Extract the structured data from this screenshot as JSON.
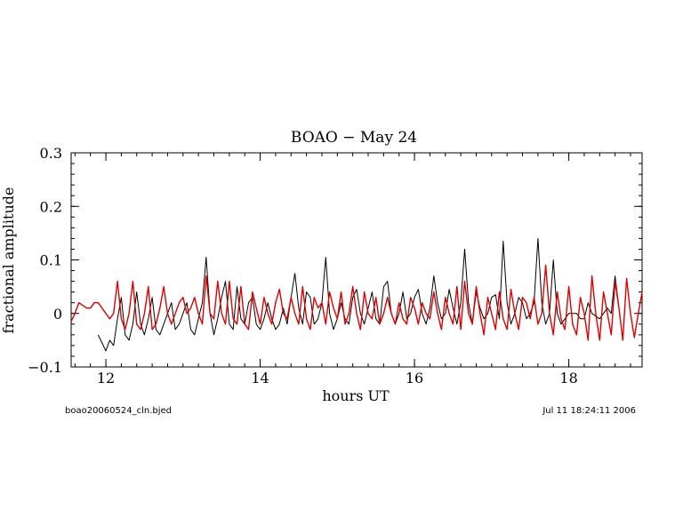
{
  "chart_data": {
    "type": "line",
    "title": "BOAO − May 24",
    "xlabel": "hours UT",
    "ylabel": "fractional amplitude",
    "xlim": [
      11.55,
      18.95
    ],
    "ylim": [
      -0.1,
      0.3
    ],
    "xticks": [
      12,
      14,
      16,
      18
    ],
    "xtick_labels": [
      "12",
      "14",
      "16",
      "18"
    ],
    "yticks": [
      -0.1,
      0,
      0.1,
      0.2,
      0.3
    ],
    "ytick_labels": [
      "−0.1",
      "0",
      "0.1",
      "0.2",
      "0.3"
    ],
    "grid": false,
    "series": [
      {
        "color": "#000000",
        "x": [
          11.9,
          12.0,
          12.05,
          12.1,
          12.15,
          12.2,
          12.25,
          12.3,
          12.35,
          12.4,
          12.45,
          12.5,
          12.55,
          12.6,
          12.65,
          12.7,
          12.75,
          12.8,
          12.85,
          12.9,
          12.95,
          13.0,
          13.05,
          13.1,
          13.15,
          13.2,
          13.25,
          13.3,
          13.35,
          13.4,
          13.45,
          13.5,
          13.55,
          13.6,
          13.65,
          13.7,
          13.75,
          13.8,
          13.85,
          13.9,
          13.95,
          14.0,
          14.05,
          14.1,
          14.15,
          14.2,
          14.25,
          14.3,
          14.35,
          14.4,
          14.45,
          14.5,
          14.55,
          14.6,
          14.65,
          14.7,
          14.75,
          14.8,
          14.85,
          14.9,
          14.95,
          15.0,
          15.05,
          15.1,
          15.15,
          15.2,
          15.25,
          15.3,
          15.35,
          15.4,
          15.45,
          15.5,
          15.55,
          15.6,
          15.65,
          15.7,
          15.75,
          15.8,
          15.85,
          15.9,
          15.95,
          16.0,
          16.05,
          16.1,
          16.15,
          16.2,
          16.25,
          16.3,
          16.35,
          16.4,
          16.45,
          16.5,
          16.55,
          16.6,
          16.65,
          16.7,
          16.75,
          16.8,
          16.85,
          16.9,
          16.95,
          17.0,
          17.05,
          17.1,
          17.15,
          17.2,
          17.25,
          17.3,
          17.35,
          17.4,
          17.45,
          17.5,
          17.55,
          17.6,
          17.65,
          17.7,
          17.75,
          17.8,
          17.85,
          17.9,
          18.0,
          18.1,
          18.15,
          18.2,
          18.25,
          18.3,
          18.4,
          18.45,
          18.5,
          18.55,
          18.6,
          18.65
        ],
        "values": [
          -0.04,
          -0.07,
          -0.05,
          -0.06,
          -0.01,
          0.03,
          -0.04,
          -0.05,
          -0.02,
          0.04,
          -0.02,
          -0.04,
          -0.01,
          0.03,
          -0.03,
          -0.04,
          -0.02,
          0.0,
          0.02,
          -0.03,
          -0.02,
          0.0,
          0.02,
          -0.03,
          -0.04,
          -0.01,
          0.02,
          0.105,
          0.0,
          -0.04,
          -0.01,
          0.03,
          0.06,
          -0.02,
          -0.03,
          0.05,
          -0.01,
          -0.02,
          0.02,
          0.03,
          -0.02,
          -0.03,
          -0.01,
          0.02,
          -0.01,
          -0.03,
          -0.02,
          0.01,
          -0.02,
          0.03,
          0.075,
          0.01,
          -0.02,
          0.04,
          0.03,
          -0.02,
          -0.01,
          0.02,
          0.105,
          0.0,
          -0.03,
          -0.01,
          0.02,
          -0.01,
          -0.02,
          0.03,
          0.045,
          0.0,
          -0.02,
          0.01,
          0.04,
          -0.01,
          -0.02,
          0.05,
          0.06,
          0.0,
          -0.02,
          0.0,
          0.04,
          -0.01,
          0.0,
          0.03,
          0.045,
          0.0,
          -0.02,
          0.01,
          0.07,
          0.02,
          -0.01,
          0.0,
          0.045,
          0.01,
          -0.02,
          0.02,
          0.12,
          0.02,
          -0.02,
          0.04,
          0.01,
          -0.01,
          0.0,
          0.03,
          0.035,
          -0.01,
          0.135,
          0.02,
          -0.02,
          0.0,
          0.03,
          0.02,
          -0.01,
          0.0,
          0.02,
          0.14,
          0.02,
          -0.02,
          0.0,
          0.1,
          0.0,
          -0.02,
          0.0,
          0.0,
          -0.01,
          -0.01,
          0.02,
          0.0,
          -0.01,
          0.0,
          0.01,
          0.0,
          0.07,
          0.01
        ]
      },
      {
        "color": "#e00000",
        "x": [
          11.55,
          11.6,
          11.65,
          11.7,
          11.75,
          11.8,
          11.85,
          11.9,
          11.95,
          12.0,
          12.05,
          12.1,
          12.15,
          12.2,
          12.25,
          12.3,
          12.35,
          12.4,
          12.45,
          12.5,
          12.55,
          12.6,
          12.65,
          12.7,
          12.75,
          12.8,
          12.85,
          12.9,
          12.95,
          13.0,
          13.05,
          13.1,
          13.15,
          13.2,
          13.25,
          13.3,
          13.35,
          13.4,
          13.45,
          13.5,
          13.55,
          13.6,
          13.65,
          13.7,
          13.75,
          13.8,
          13.85,
          13.9,
          13.95,
          14.0,
          14.05,
          14.1,
          14.15,
          14.2,
          14.25,
          14.3,
          14.35,
          14.4,
          14.45,
          14.5,
          14.55,
          14.6,
          14.65,
          14.7,
          14.75,
          14.8,
          14.85,
          14.9,
          14.95,
          15.0,
          15.05,
          15.1,
          15.15,
          15.2,
          15.25,
          15.3,
          15.35,
          15.4,
          15.45,
          15.5,
          15.55,
          15.6,
          15.65,
          15.7,
          15.75,
          15.8,
          15.85,
          15.9,
          15.95,
          16.0,
          16.05,
          16.1,
          16.15,
          16.2,
          16.25,
          16.3,
          16.35,
          16.4,
          16.45,
          16.5,
          16.55,
          16.6,
          16.65,
          16.7,
          16.75,
          16.8,
          16.85,
          16.9,
          16.95,
          17.0,
          17.05,
          17.1,
          17.15,
          17.2,
          17.25,
          17.3,
          17.35,
          17.4,
          17.45,
          17.5,
          17.55,
          17.6,
          17.65,
          17.7,
          17.75,
          17.8,
          17.85,
          17.9,
          17.95,
          18.0,
          18.05,
          18.1,
          18.15,
          18.2,
          18.25,
          18.3,
          18.35,
          18.4,
          18.45,
          18.5,
          18.55,
          18.6,
          18.65,
          18.7,
          18.75,
          18.8,
          18.85,
          18.9,
          18.95
        ],
        "values": [
          -0.015,
          0.0,
          0.02,
          0.015,
          0.01,
          0.01,
          0.02,
          0.02,
          0.01,
          0.0,
          -0.01,
          0.0,
          0.06,
          -0.01,
          -0.03,
          0.0,
          0.06,
          -0.02,
          -0.03,
          0.0,
          0.05,
          -0.03,
          -0.02,
          0.01,
          0.05,
          0.0,
          -0.02,
          0.0,
          0.02,
          0.03,
          0.0,
          0.01,
          0.03,
          0.0,
          -0.02,
          0.07,
          0.0,
          -0.01,
          0.06,
          0.0,
          -0.02,
          0.06,
          -0.01,
          -0.02,
          0.05,
          -0.02,
          -0.03,
          0.04,
          0.01,
          -0.02,
          0.03,
          0.0,
          -0.02,
          0.02,
          0.045,
          0.0,
          -0.01,
          0.03,
          0.0,
          -0.02,
          0.05,
          -0.01,
          -0.03,
          0.03,
          0.01,
          0.02,
          -0.02,
          0.04,
          0.01,
          -0.01,
          0.04,
          -0.02,
          0.0,
          0.05,
          0.0,
          -0.03,
          0.04,
          0.0,
          -0.01,
          0.03,
          -0.02,
          0.0,
          0.03,
          0.0,
          -0.02,
          0.02,
          -0.01,
          -0.02,
          0.03,
          0.01,
          -0.02,
          0.02,
          0.0,
          -0.01,
          0.04,
          0.0,
          -0.03,
          0.03,
          0.0,
          -0.02,
          0.05,
          -0.03,
          0.06,
          0.0,
          -0.02,
          0.05,
          0.0,
          -0.04,
          0.03,
          0.0,
          -0.03,
          0.04,
          -0.01,
          -0.03,
          0.045,
          0.0,
          -0.03,
          0.03,
          0.02,
          -0.01,
          0.03,
          -0.02,
          0.0,
          0.09,
          0.0,
          -0.04,
          0.04,
          -0.01,
          -0.03,
          0.05,
          -0.02,
          -0.04,
          0.03,
          0.0,
          -0.05,
          0.07,
          0.0,
          -0.05,
          0.04,
          0.0,
          -0.04,
          0.06,
          0.01,
          -0.05,
          0.065,
          0.0,
          -0.045,
          0.0,
          0.04
        ]
      }
    ]
  },
  "footer": {
    "left": "boao20060524_cln.bjed",
    "right": "Jul 11  18:24:11 2006"
  }
}
